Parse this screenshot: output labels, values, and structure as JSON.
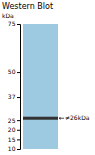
{
  "chart_data": {
    "type": "band",
    "title": "Western Blot",
    "ylabel": "kDa",
    "values": [
      26
    ],
    "color": "#333333",
    "ylim": [
      10,
      75
    ],
    "yticks": [
      75,
      50,
      37,
      25,
      20,
      15,
      10
    ],
    "annotations": [
      "≠26kDa"
    ]
  }
}
